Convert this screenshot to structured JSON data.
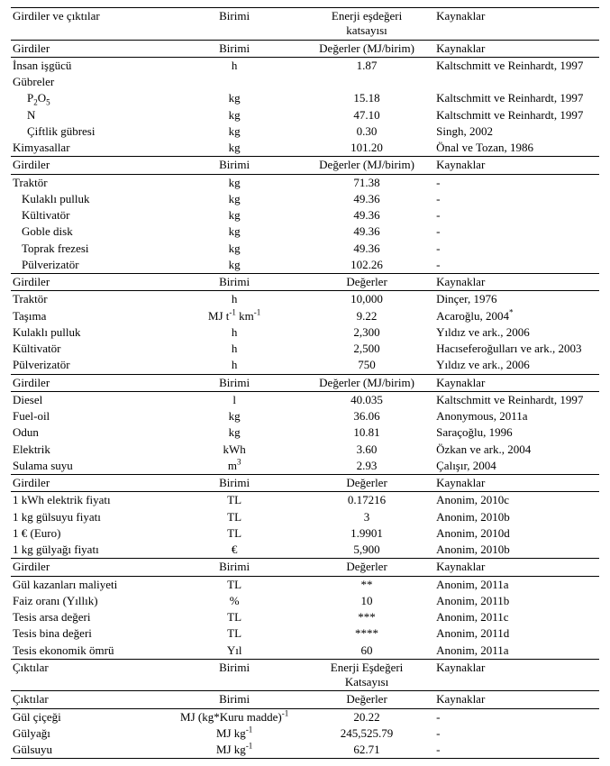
{
  "sections": [
    {
      "header_rows": [
        {
          "c1": "Girdiler ve çıktılar",
          "c2": "Birimi",
          "c3_html": "Enerji eşdeğeri<br>katsayısı",
          "c4": "Kaynaklar",
          "border": "top"
        },
        {
          "c1": "Girdiler",
          "c2": "Birimi",
          "c3": "Değerler (MJ/birim)",
          "c4": "Kaynaklar",
          "border": "both"
        }
      ],
      "rows": [
        {
          "c1": "İnsan işgücü",
          "c2": "h",
          "c3": "1.87",
          "c4": "Kaltschmitt ve Reinhardt, 1997"
        },
        {
          "c1": "Gübreler",
          "c2": "",
          "c3": "",
          "c4": ""
        },
        {
          "c1_html": "P<sub>2</sub>O<sub>5</sub>",
          "indent": 2,
          "c2": "kg",
          "c3": "15.18",
          "c4": "Kaltschmitt ve Reinhardt, 1997"
        },
        {
          "c1": "N",
          "indent": 2,
          "c2": "kg",
          "c3": "47.10",
          "c4": "Kaltschmitt ve Reinhardt, 1997"
        },
        {
          "c1": "Çiftlik gübresi",
          "indent": 2,
          "c2": "kg",
          "c3": "0.30",
          "c4": "Singh, 2002"
        },
        {
          "c1": "Kimyasallar",
          "c2": "kg",
          "c3": "101.20",
          "c4": "Önal ve Tozan, 1986"
        }
      ]
    },
    {
      "header_rows": [
        {
          "c1": "Girdiler",
          "c2": "Birimi",
          "c3": "Değerler (MJ/birim)",
          "c4": "Kaynaklar",
          "border": "both"
        }
      ],
      "rows": [
        {
          "c1": "Traktör",
          "c2": "kg",
          "c3": "71.38",
          "c4": "-"
        },
        {
          "c1": "Kulaklı pulluk",
          "indent": 1,
          "c2": "kg",
          "c3": "49.36",
          "c4": "-"
        },
        {
          "c1": "Kültivatör",
          "indent": 1,
          "c2": "kg",
          "c3": "49.36",
          "c4": "-"
        },
        {
          "c1": "Goble disk",
          "indent": 1,
          "c2": "kg",
          "c3": "49.36",
          "c4": "-"
        },
        {
          "c1": "Toprak frezesi",
          "indent": 1,
          "c2": "kg",
          "c3": "49.36",
          "c4": "-"
        },
        {
          "c1": "Pülverizatör",
          "indent": 1,
          "c2": "kg",
          "c3": "102.26",
          "c4": "-"
        }
      ]
    },
    {
      "header_rows": [
        {
          "c1": "Girdiler",
          "c2": "Birimi",
          "c3": "Değerler",
          "c4": "Kaynaklar",
          "border": "both"
        }
      ],
      "rows": [
        {
          "c1": "Traktör",
          "c2": "h",
          "c3": "10,000",
          "c4": "Dinçer, 1976"
        },
        {
          "c1": "Taşıma",
          "c2_html": "MJ t<sup>-1</sup> km<sup>-1</sup>",
          "c3": "9.22",
          "c4_html": "Acaroğlu, 2004<sup>*</sup>"
        },
        {
          "c1": "Kulaklı pulluk",
          "c2": "h",
          "c3": "2,300",
          "c4": "Yıldız ve ark., 2006"
        },
        {
          "c1": "Kültivatör",
          "c2": "h",
          "c3": "2,500",
          "c4": "Hacıseferoğulları ve ark., 2003"
        },
        {
          "c1": "Pülverizatör",
          "c2": "h",
          "c3": "750",
          "c4": "Yıldız ve ark., 2006"
        }
      ]
    },
    {
      "header_rows": [
        {
          "c1": "Girdiler",
          "c2": "Birimi",
          "c3": "Değerler (MJ/birim)",
          "c4": "Kaynaklar",
          "border": "both"
        }
      ],
      "rows": [
        {
          "c1": "Diesel",
          "c2": "l",
          "c3": "40.035",
          "c4": "Kaltschmitt ve Reinhardt, 1997"
        },
        {
          "c1": "Fuel-oil",
          "c2": "kg",
          "c3": "36.06",
          "c4": "Anonymous, 2011a"
        },
        {
          "c1": "Odun",
          "c2": "kg",
          "c3": "10.81",
          "c4": "Saraçoğlu, 1996"
        },
        {
          "c1": "Elektrik",
          "c2": "kWh",
          "c3": "3.60",
          "c4": "Özkan ve ark., 2004"
        },
        {
          "c1": "Sulama suyu",
          "c2_html": "m<sup>3</sup>",
          "c3": "2.93",
          "c4": "Çalışır, 2004"
        }
      ]
    },
    {
      "header_rows": [
        {
          "c1": "Girdiler",
          "c2": "Birimi",
          "c3": "Değerler",
          "c4": "Kaynaklar",
          "border": "both"
        }
      ],
      "rows": [
        {
          "c1": "1 kWh elektrik fiyatı",
          "c2": "TL",
          "c3": "0.17216",
          "c4": "Anonim, 2010c"
        },
        {
          "c1": "1 kg gülsuyu fiyatı",
          "c2": "TL",
          "c3": "3",
          "c4": "Anonim, 2010b"
        },
        {
          "c1": "1 € (Euro)",
          "c2": "TL",
          "c3": "1.9901",
          "c4": "Anonim, 2010d"
        },
        {
          "c1": "1 kg gülyağı fiyatı",
          "c2": "€",
          "c3": "5,900",
          "c4": "Anonim, 2010b"
        }
      ]
    },
    {
      "header_rows": [
        {
          "c1": "Girdiler",
          "c2": "Birimi",
          "c3": "Değerler",
          "c4": "Kaynaklar",
          "border": "both"
        }
      ],
      "rows": [
        {
          "c1": "Gül kazanları maliyeti",
          "c2": "TL",
          "c3": "**",
          "c4": "Anonim, 2011a"
        },
        {
          "c1": "Faiz oranı (Yıllık)",
          "c2": "%",
          "c3": "10",
          "c4": "Anonim, 2011b"
        },
        {
          "c1": "Tesis arsa değeri",
          "c2": "TL",
          "c3": "***",
          "c4": "Anonim, 2011c"
        },
        {
          "c1": "Tesis bina değeri",
          "c2": "TL",
          "c3": "****",
          "c4": "Anonim, 2011d"
        },
        {
          "c1": "Tesis ekonomik ömrü",
          "c2": "Yıl",
          "c3": "60",
          "c4": "Anonim, 2011a"
        }
      ]
    },
    {
      "header_rows": [
        {
          "c1": "Çıktılar",
          "c2": "Birimi",
          "c3_html": "Enerji Eşdeğeri<br>Katsayısı",
          "c4": "Kaynaklar",
          "border": "top"
        },
        {
          "c1": "Çıktılar",
          "c2": "Birimi",
          "c3": "Değerler",
          "c4": "Kaynaklar",
          "border": "both"
        }
      ],
      "rows": [
        {
          "c1": "Gül çiçeği",
          "c2_html": "MJ (kg*Kuru madde)<sup>-1</sup>",
          "c3": "20.22",
          "c4": "-"
        },
        {
          "c1": "Gülyağı",
          "c2_html": "MJ kg<sup>-1</sup>",
          "c3": "245,525.79",
          "c4": "-"
        },
        {
          "c1": "Gülsuyu",
          "c2_html": "MJ kg<sup>-1</sup>",
          "c3": "62.71",
          "c4": "-"
        }
      ],
      "bottom_border": true
    }
  ]
}
